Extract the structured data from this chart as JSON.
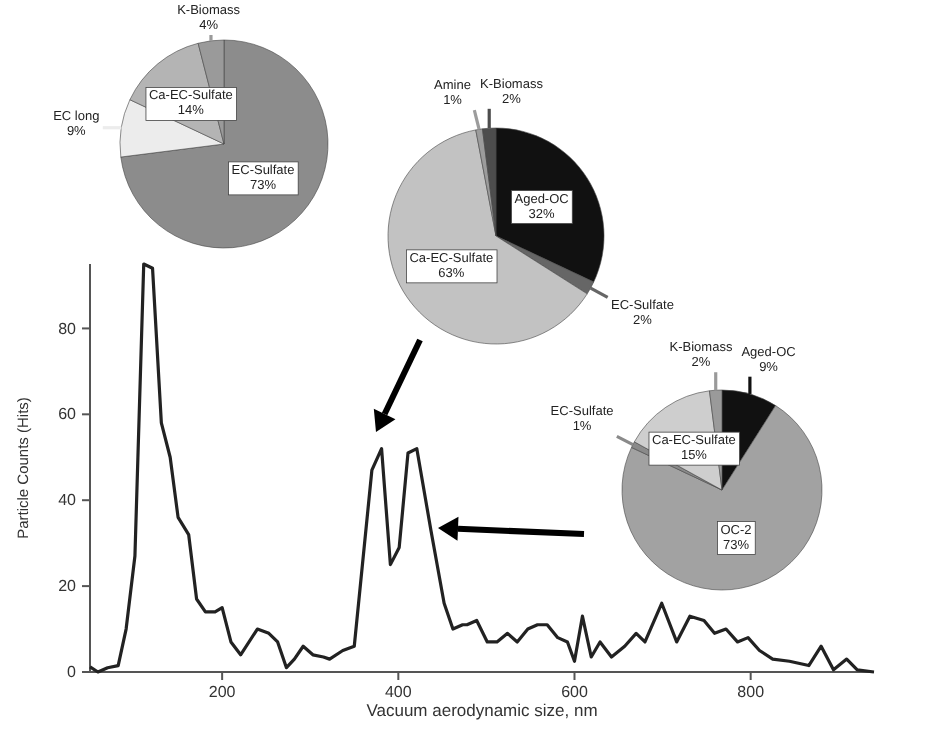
{
  "chart_data": [
    {
      "type": "line",
      "xlabel": "Vacuum aerodynamic size, nm",
      "ylabel": "Particle Counts (Hits)",
      "xlim": [
        50,
        940
      ],
      "ylim": [
        0,
        95
      ],
      "xticks": [
        200,
        400,
        600,
        800
      ],
      "yticks": [
        0,
        20,
        40,
        60,
        80
      ],
      "marker": "none",
      "line_style": "solid",
      "series": [
        {
          "color": "#222222",
          "x": [
            50,
            59,
            70,
            82,
            91,
            101,
            111,
            121,
            131,
            141,
            150,
            162,
            171,
            181,
            192,
            200,
            210,
            221,
            240,
            253,
            263,
            273,
            282,
            292,
            303,
            315,
            322,
            337,
            350,
            370,
            381,
            391,
            401,
            411,
            421,
            437,
            452,
            462,
            473,
            478,
            489,
            501,
            512,
            524,
            535,
            547,
            558,
            569,
            581,
            592,
            600,
            609,
            619,
            629,
            642,
            657,
            670,
            680,
            699,
            716,
            731,
            747,
            759,
            772,
            785,
            797,
            810,
            825,
            844,
            866,
            880,
            894,
            909,
            921,
            940
          ],
          "values": [
            1.2,
            0,
            1,
            1.5,
            10,
            27,
            95,
            94,
            58,
            50,
            36,
            32,
            17,
            14,
            14,
            15,
            7,
            4,
            10,
            9,
            7,
            1,
            3,
            6,
            4,
            3.5,
            3,
            5,
            6,
            47,
            52,
            25,
            29,
            51,
            52,
            33,
            16,
            10,
            11,
            11,
            12,
            7,
            7,
            9,
            7,
            10,
            11,
            11,
            8,
            7,
            2.5,
            13,
            3.5,
            7,
            3.5,
            6,
            9,
            7,
            16,
            7,
            13,
            12,
            9,
            10,
            7,
            8,
            5,
            3,
            2.5,
            1.5,
            6,
            0.5,
            3,
            0.5,
            0
          ]
        }
      ]
    },
    {
      "type": "pie",
      "categories": [
        "EC-Sulfate",
        "EC long",
        "Ca-EC-Sulfate",
        "K-Biomass"
      ],
      "values": [
        73,
        9,
        14,
        4
      ],
      "value_labels": [
        "73%",
        "9%",
        "14%",
        "4%"
      ],
      "colors": [
        "#8c8c8c",
        "#ececec",
        "#b4b4b4",
        "#9a9a9a"
      ]
    },
    {
      "type": "pie",
      "categories": [
        "Aged-OC",
        "EC-Sulfate",
        "Ca-EC-Sulfate",
        "Amine",
        "K-Biomass"
      ],
      "values": [
        32,
        2,
        63,
        1,
        2
      ],
      "value_labels": [
        "32%",
        "2%",
        "63%",
        "1%",
        "2%"
      ],
      "colors": [
        "#111111",
        "#666666",
        "#c2c2c2",
        "#9c9c9c",
        "#4d4d4d"
      ]
    },
    {
      "type": "pie",
      "categories": [
        "Aged-OC",
        "OC-2",
        "EC-Sulfate",
        "Ca-EC-Sulfate",
        "K-Biomass"
      ],
      "values": [
        9,
        73,
        1,
        15,
        2
      ],
      "value_labels": [
        "9%",
        "73%",
        "1%",
        "15%",
        "2%"
      ],
      "colors": [
        "#111111",
        "#a2a2a2",
        "#8a8a8a",
        "#cecece",
        "#9a9a9a"
      ]
    }
  ]
}
